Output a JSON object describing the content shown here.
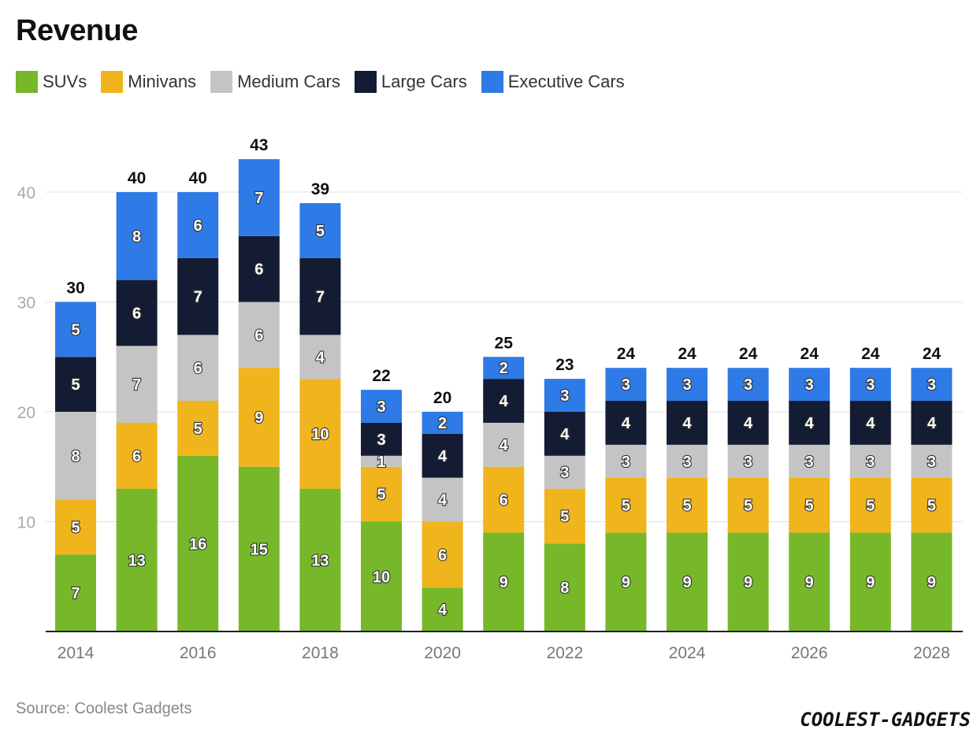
{
  "chart_data": {
    "type": "bar",
    "stacked": true,
    "title": "Revenue",
    "categories": [
      "2014",
      "2015",
      "2016",
      "2017",
      "2018",
      "2019",
      "2020",
      "2021",
      "2022",
      "2023",
      "2024",
      "2025",
      "2026",
      "2027",
      "2028"
    ],
    "x_tick_labels": [
      "2014",
      "",
      "2016",
      "",
      "2018",
      "",
      "2020",
      "",
      "2022",
      "",
      "2024",
      "",
      "2026",
      "",
      "2028"
    ],
    "series": [
      {
        "name": "SUVs",
        "color": "#76b82a",
        "values": [
          7,
          13,
          16,
          15,
          13,
          10,
          4,
          9,
          8,
          9,
          9,
          9,
          9,
          9,
          9
        ]
      },
      {
        "name": "Minivans",
        "color": "#f0b51c",
        "values": [
          5,
          6,
          5,
          9,
          10,
          5,
          6,
          6,
          5,
          5,
          5,
          5,
          5,
          5,
          5
        ]
      },
      {
        "name": "Medium Cars",
        "color": "#c4c4c4",
        "values": [
          8,
          7,
          6,
          6,
          4,
          1,
          4,
          4,
          3,
          3,
          3,
          3,
          3,
          3,
          3
        ]
      },
      {
        "name": "Large Cars",
        "color": "#141c33",
        "values": [
          5,
          6,
          7,
          6,
          7,
          3,
          4,
          4,
          4,
          4,
          4,
          4,
          4,
          4,
          4
        ]
      },
      {
        "name": "Executive Cars",
        "color": "#2e7ae6",
        "values": [
          5,
          8,
          6,
          7,
          5,
          3,
          2,
          2,
          3,
          3,
          3,
          3,
          3,
          3,
          3
        ]
      }
    ],
    "totals": [
      30,
      40,
      40,
      43,
      39,
      22,
      20,
      25,
      23,
      24,
      24,
      24,
      24,
      24,
      24
    ],
    "ylim": [
      0,
      45
    ],
    "y_ticks": [
      10,
      20,
      30,
      40
    ],
    "grid": true,
    "legend_position": "top-left",
    "xlabel": "",
    "ylabel": ""
  },
  "footer": {
    "source": "Source: Coolest Gadgets",
    "brand": "COOLEST-GADGETS"
  }
}
